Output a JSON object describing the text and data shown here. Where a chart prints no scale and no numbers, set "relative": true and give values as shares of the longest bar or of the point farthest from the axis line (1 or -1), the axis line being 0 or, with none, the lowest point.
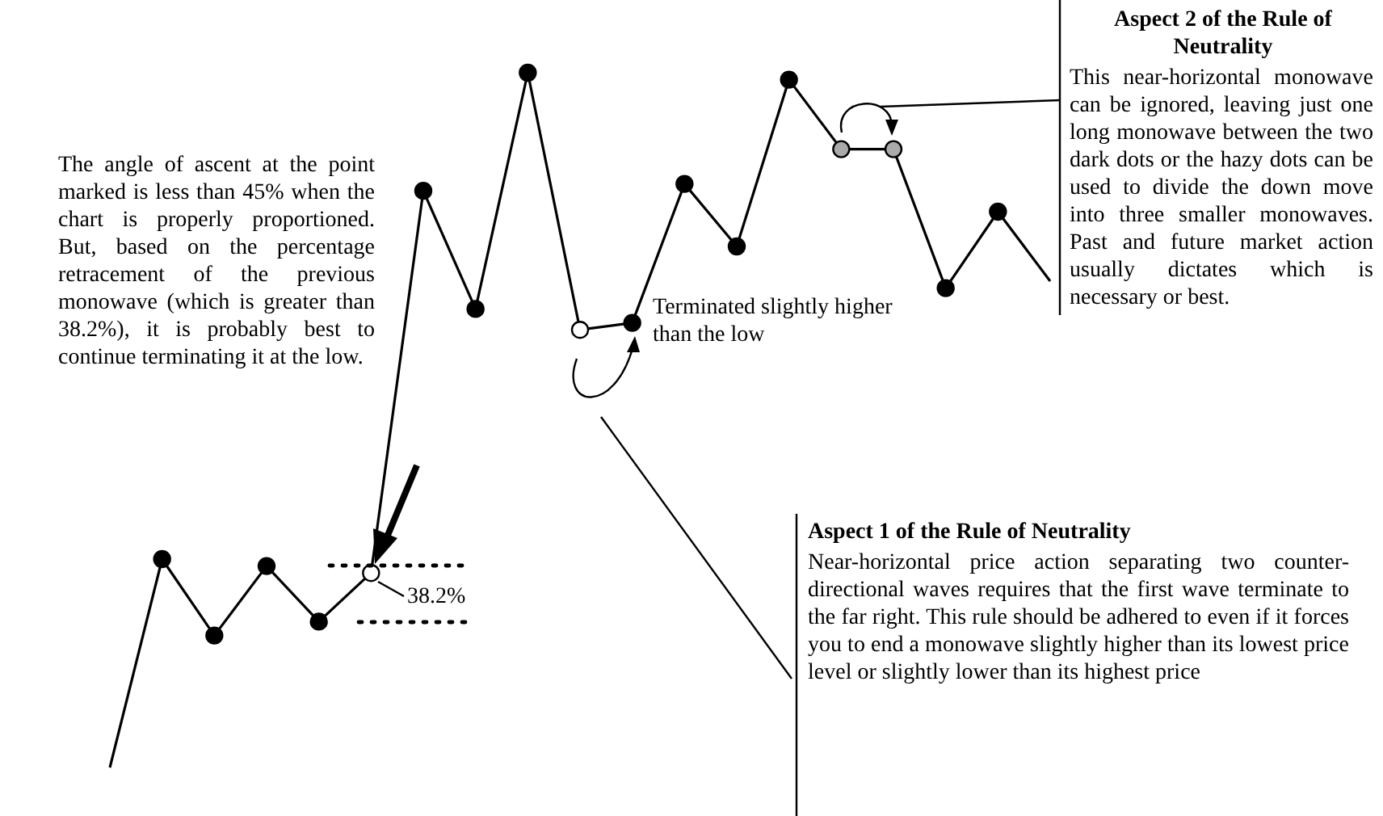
{
  "chart_data": {
    "type": "line",
    "relative": true,
    "legend": false,
    "marker": "circle",
    "categories": [
      null,
      null,
      null,
      null,
      null,
      null,
      null,
      null,
      null,
      null,
      null,
      null,
      null,
      null,
      null,
      null,
      null,
      null,
      null
    ],
    "series": [
      {
        "color": "#000000",
        "values": [
          0,
          0.3,
          0.19,
          0.29,
          0.21,
          0.28,
          0.83,
          0.66,
          1,
          0.63,
          0.64,
          0.84,
          0.75,
          0.99,
          0.89,
          0.89,
          0.69,
          0.8,
          0.7
        ],
        "colors": [
          null,
          "#000000",
          "#000000",
          "#000000",
          "#000000",
          "#ffffff",
          "#000000",
          "#000000",
          "#000000",
          "#ffffff",
          "#000000",
          "#000000",
          "#000000",
          "#000000",
          "#aaaaaa",
          "#aaaaaa",
          "#000000",
          "#000000",
          null
        ]
      }
    ],
    "annotations": [
      "The angle of ascent at the point marked is less than 45% when the chart is properly proportioned. But, based on the percentage retracement of the previous monowave (which is greater than 38.2%), it is probably best to continue terminating it at the low.",
      "38.2%",
      "Terminated slightly higher than the low",
      "Aspect 2 of the Rule of Neutrality",
      "This near-horizontal monowave can be ignored, leaving just one long monowave between the two dark dots or the hazy dots can be used to divide the down move into three smaller monowaves. Past and future market action usually dictates which is necessary or best.",
      "Aspect 1 of the Rule of Neutrality",
      "Near-horizontal price action separating two counter-directional waves requires that the first wave terminate to the far right. This rule should be adhered to even if it forces you to end a monowave slightly higher than its lowest price level or slightly lower than its highest price"
    ]
  }
}
